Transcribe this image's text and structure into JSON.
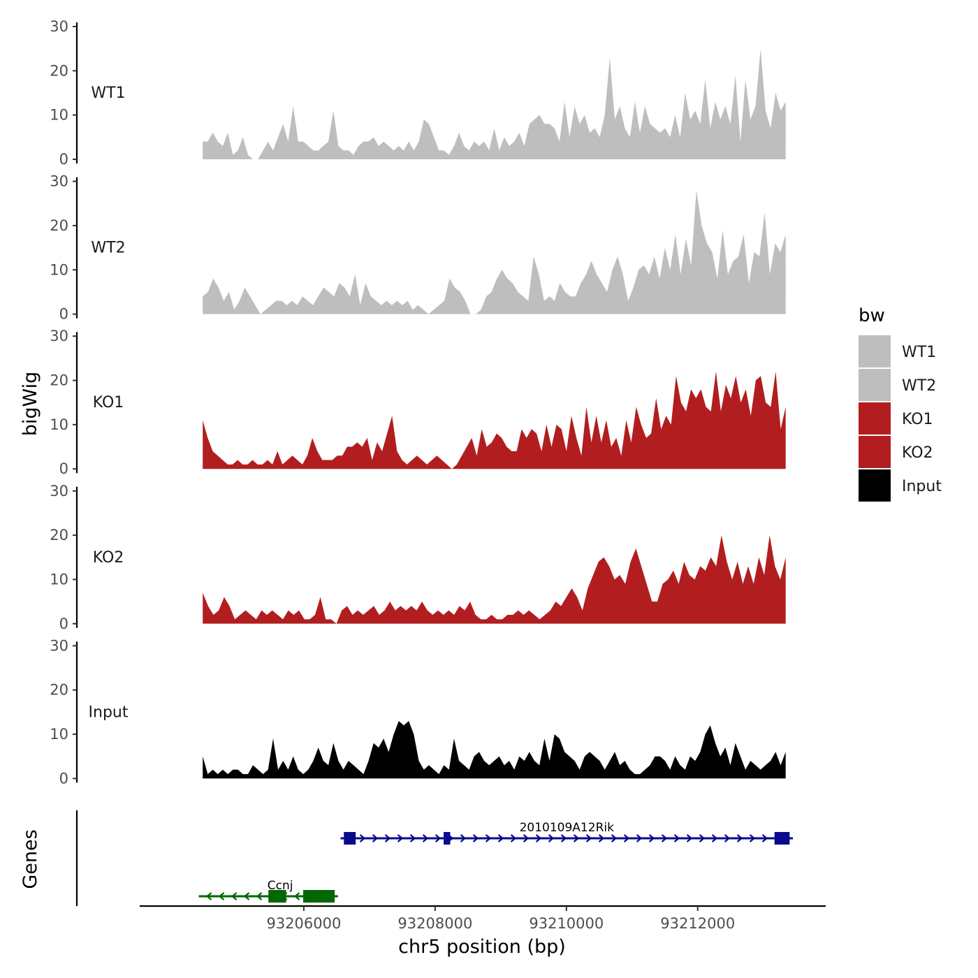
{
  "chart_data": {
    "type": "area",
    "title": "",
    "xlabel": "chr5 position (bp)",
    "ylabel": "bigWig",
    "genes_label": "Genes",
    "xlim": [
      93203500,
      93213950
    ],
    "x_start": 93204460,
    "x_end": 93213340,
    "ylim": [
      0,
      30
    ],
    "y_ticks": [
      "0",
      "10",
      "20",
      "30"
    ],
    "x_ticks": [
      {
        "value": 93206000,
        "label": "93206000"
      },
      {
        "value": 93208000,
        "label": "93208000"
      },
      {
        "value": 93210000,
        "label": "93210000"
      },
      {
        "value": 93212000,
        "label": "93212000"
      }
    ],
    "legend": {
      "title": "bw",
      "entries": [
        {
          "label": "WT1",
          "color": "#bebebe"
        },
        {
          "label": "WT2",
          "color": "#bebebe"
        },
        {
          "label": "KO1",
          "color": "#b21e1f"
        },
        {
          "label": "KO2",
          "color": "#b21e1f"
        },
        {
          "label": "Input",
          "color": "#000000"
        }
      ]
    },
    "series": [
      {
        "name": "WT1",
        "color": "#bebebe",
        "values": [
          4,
          4,
          6,
          4,
          3,
          6,
          1,
          2,
          5,
          1,
          0,
          0,
          2,
          4,
          2,
          5,
          8,
          4,
          12,
          4,
          4,
          3,
          2,
          2,
          3,
          4,
          11,
          3,
          2,
          2,
          1,
          3,
          4,
          4,
          5,
          3,
          4,
          3,
          2,
          3,
          2,
          4,
          2,
          4,
          9,
          8,
          5,
          2,
          2,
          1,
          3,
          6,
          3,
          2,
          4,
          3,
          4,
          2,
          7,
          2,
          5,
          3,
          4,
          6,
          3,
          8,
          9,
          10,
          8,
          8,
          7,
          4,
          13,
          5,
          12,
          8,
          10,
          6,
          7,
          5,
          10,
          23,
          9,
          12,
          7,
          5,
          13,
          6,
          12,
          8,
          7,
          6,
          7,
          5,
          10,
          5,
          15,
          9,
          11,
          8,
          18,
          7,
          13,
          9,
          12,
          8,
          19,
          4,
          18,
          9,
          12,
          25,
          11,
          7,
          15,
          11,
          13
        ]
      },
      {
        "name": "WT2",
        "color": "#bebebe",
        "values": [
          4,
          5,
          8,
          6,
          3,
          5,
          1,
          3,
          6,
          4,
          2,
          0,
          1,
          2,
          3,
          3,
          2,
          3,
          2,
          4,
          3,
          2,
          4,
          6,
          5,
          4,
          7,
          6,
          4,
          9,
          2,
          7,
          4,
          3,
          2,
          3,
          2,
          3,
          2,
          3,
          1,
          2,
          1,
          0,
          1,
          2,
          3,
          8,
          6,
          5,
          3,
          0,
          0,
          1,
          4,
          5,
          8,
          10,
          8,
          7,
          5,
          4,
          3,
          13,
          9,
          3,
          4,
          3,
          7,
          5,
          4,
          4,
          7,
          9,
          12,
          9,
          7,
          5,
          10,
          13,
          9,
          3,
          6,
          10,
          11,
          9,
          13,
          8,
          15,
          10,
          18,
          9,
          17,
          11,
          28,
          20,
          16,
          14,
          8,
          19,
          9,
          12,
          13,
          18,
          7,
          14,
          13,
          23,
          9,
          16,
          14,
          18
        ]
      },
      {
        "name": "KO1",
        "color": "#b21e1f",
        "values": [
          11,
          7,
          4,
          3,
          2,
          1,
          1,
          2,
          1,
          1,
          2,
          1,
          1,
          2,
          1,
          4,
          1,
          2,
          3,
          2,
          1,
          3,
          7,
          4,
          2,
          2,
          2,
          3,
          3,
          5,
          5,
          6,
          5,
          7,
          2,
          6,
          4,
          8,
          12,
          4,
          2,
          1,
          2,
          3,
          2,
          1,
          2,
          3,
          2,
          1,
          0,
          1,
          3,
          5,
          7,
          3,
          9,
          5,
          6,
          8,
          7,
          5,
          4,
          4,
          9,
          7,
          9,
          8,
          4,
          10,
          5,
          10,
          9,
          4,
          12,
          7,
          3,
          14,
          6,
          12,
          6,
          11,
          5,
          7,
          3,
          11,
          6,
          14,
          10,
          7,
          8,
          16,
          9,
          12,
          10,
          21,
          15,
          13,
          18,
          16,
          18,
          14,
          13,
          22,
          13,
          19,
          16,
          21,
          15,
          18,
          12,
          20,
          21,
          15,
          14,
          22,
          9,
          14
        ]
      },
      {
        "name": "KO2",
        "color": "#b21e1f",
        "values": [
          7,
          4,
          2,
          3,
          6,
          4,
          1,
          2,
          3,
          2,
          1,
          3,
          2,
          3,
          2,
          1,
          3,
          2,
          3,
          1,
          1,
          2,
          6,
          1,
          1,
          0,
          3,
          4,
          2,
          3,
          2,
          3,
          4,
          2,
          3,
          5,
          3,
          4,
          3,
          4,
          3,
          5,
          3,
          2,
          3,
          2,
          3,
          2,
          4,
          3,
          5,
          2,
          1,
          1,
          2,
          1,
          1,
          2,
          2,
          3,
          2,
          3,
          2,
          1,
          2,
          3,
          5,
          4,
          6,
          8,
          6,
          3,
          8,
          11,
          14,
          15,
          13,
          10,
          11,
          9,
          14,
          17,
          13,
          9,
          5,
          5,
          9,
          10,
          12,
          9,
          14,
          11,
          10,
          13,
          12,
          15,
          13,
          20,
          14,
          10,
          14,
          9,
          13,
          9,
          15,
          11,
          20,
          13,
          10,
          15
        ]
      },
      {
        "name": "Input",
        "color": "#000000",
        "values": [
          5,
          1,
          2,
          1,
          2,
          1,
          2,
          2,
          1,
          1,
          3,
          2,
          1,
          2,
          9,
          2,
          4,
          2,
          5,
          2,
          1,
          2,
          4,
          7,
          4,
          3,
          8,
          4,
          2,
          4,
          3,
          2,
          1,
          4,
          8,
          7,
          9,
          6,
          10,
          13,
          12,
          13,
          10,
          4,
          2,
          3,
          2,
          1,
          3,
          2,
          9,
          4,
          3,
          2,
          5,
          6,
          4,
          3,
          4,
          5,
          3,
          4,
          2,
          5,
          4,
          6,
          4,
          3,
          9,
          4,
          10,
          9,
          6,
          5,
          4,
          2,
          5,
          6,
          5,
          4,
          2,
          4,
          6,
          3,
          4,
          2,
          1,
          1,
          2,
          3,
          5,
          5,
          4,
          2,
          5,
          3,
          2,
          5,
          4,
          6,
          10,
          12,
          8,
          5,
          7,
          3,
          8,
          5,
          2,
          4,
          3,
          2,
          3,
          4,
          6,
          3,
          6
        ]
      }
    ],
    "genes": [
      {
        "name": "2010109A12Rik",
        "strand": "+",
        "start": 93206560,
        "end": 93213450,
        "color": "#0a0a8c",
        "exons": [
          [
            93206610,
            93206790
          ],
          [
            93208130,
            93208230
          ],
          [
            93213170,
            93213400
          ]
        ]
      },
      {
        "name": "Ccnj",
        "strand": "-",
        "start": 93204400,
        "end": 93206520,
        "color": "#026602",
        "exons": [
          [
            93205460,
            93205730
          ],
          [
            93205990,
            93206470
          ]
        ]
      }
    ]
  }
}
